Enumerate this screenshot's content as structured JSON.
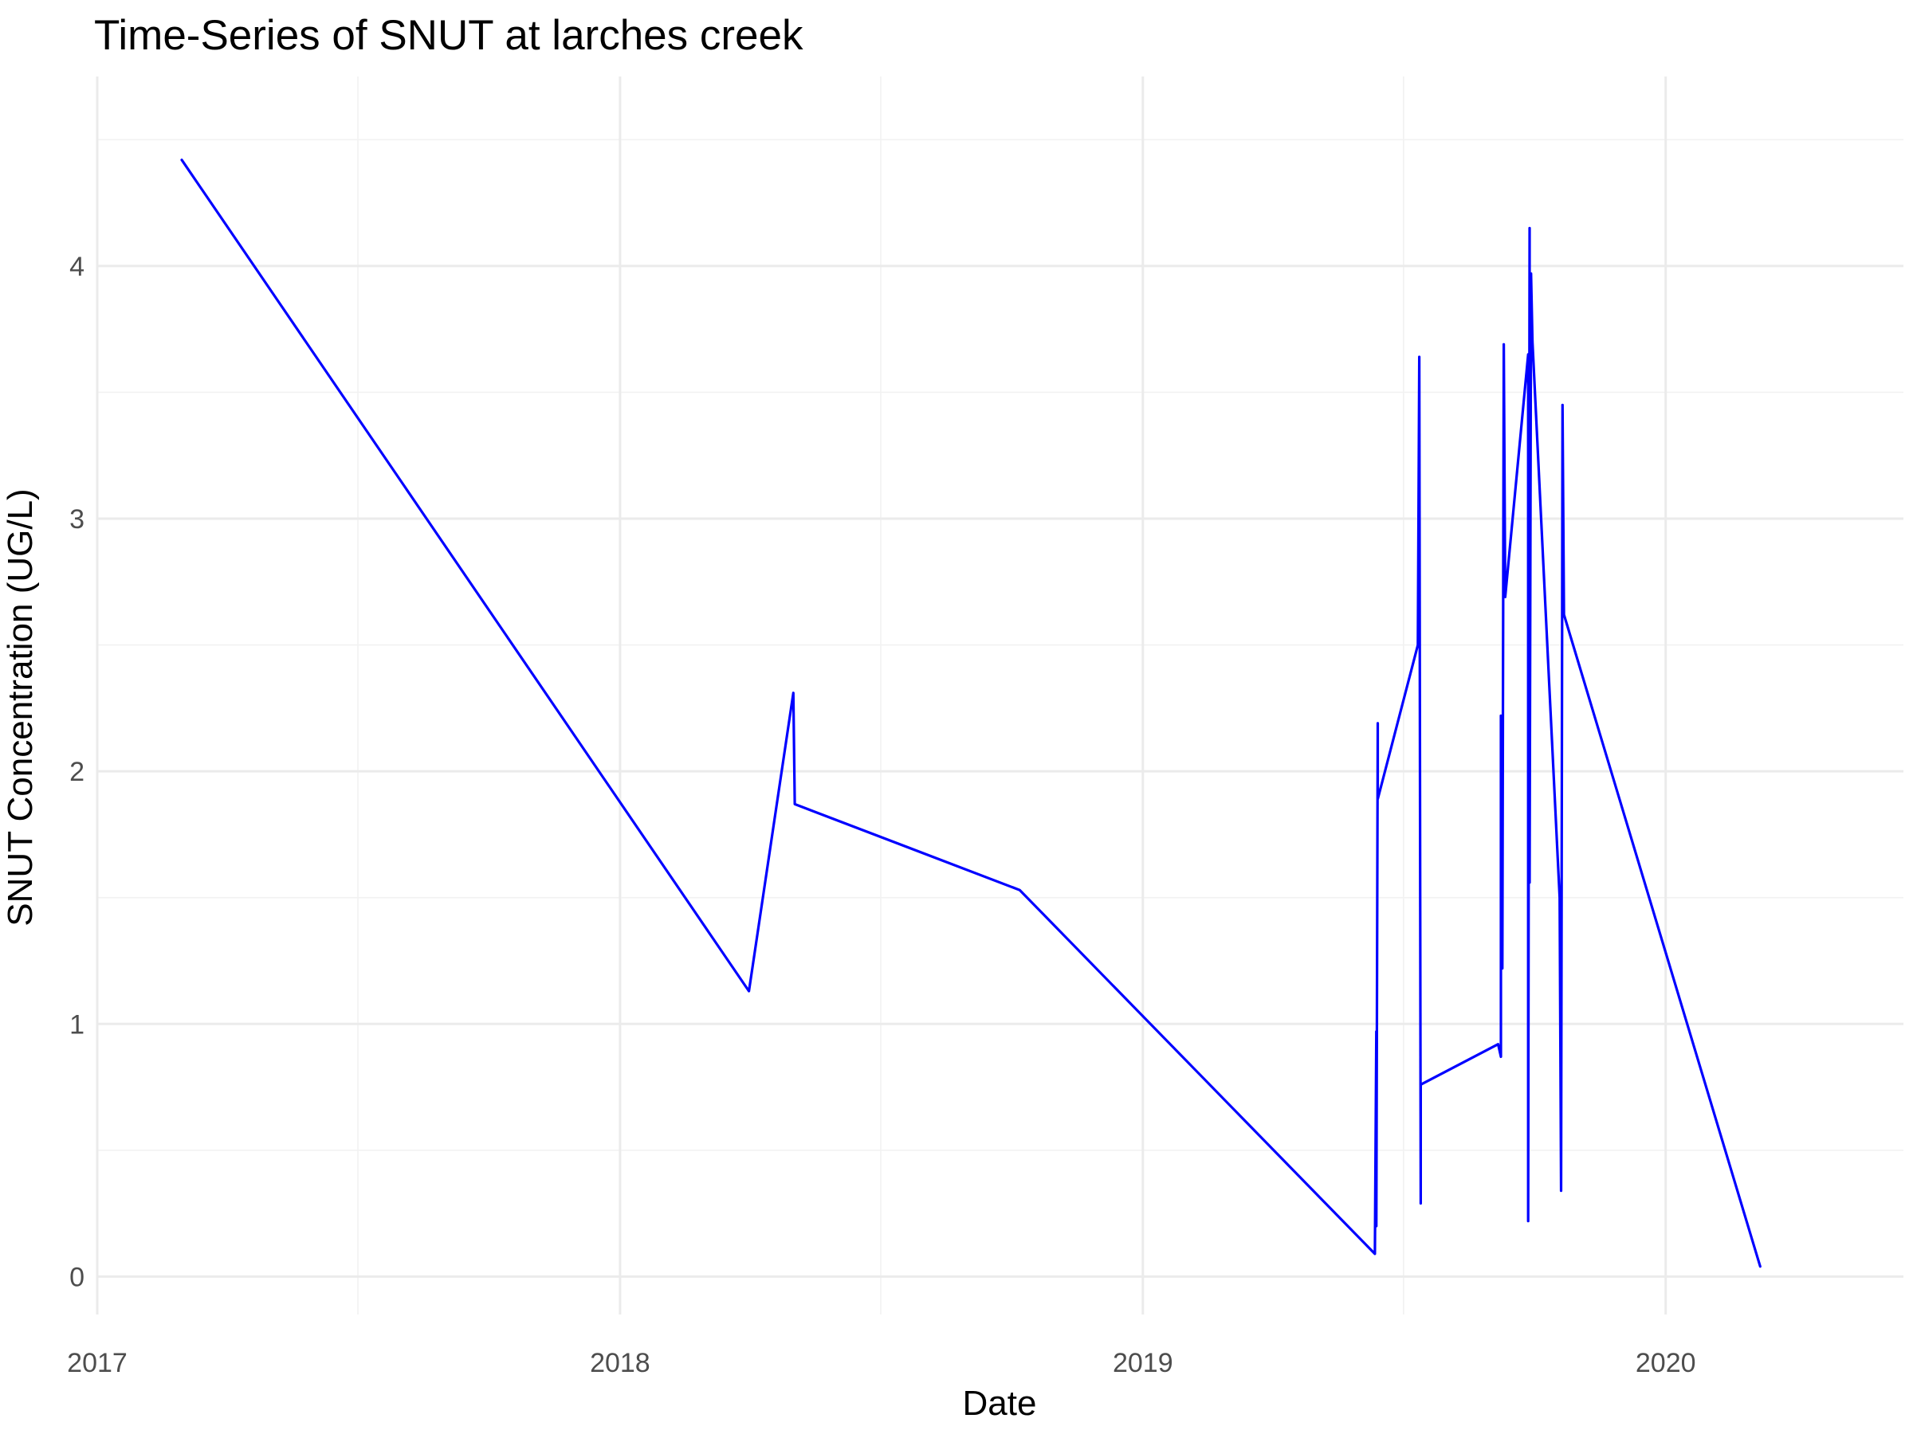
{
  "chart_data": {
    "type": "line",
    "title": "Time-Series of SNUT at larches creek",
    "xlabel": "Date",
    "ylabel": "SNUT Concentration (UG/L)",
    "x_ticks": [
      "2017",
      "2018",
      "2019",
      "2020"
    ],
    "y_ticks": [
      "0",
      "1",
      "2",
      "3",
      "4"
    ],
    "xlim": [
      "2017-01-01",
      "2020-06-15"
    ],
    "ylim": [
      -0.15,
      4.75
    ],
    "grid": true,
    "legend": "none",
    "colors": {
      "line": "#0000ff",
      "grid": "#ebebeb",
      "background": "#ffffff"
    },
    "series": [
      {
        "points": [
          [
            "2017-03-01",
            4.42
          ],
          [
            "2018-04-01",
            1.13
          ],
          [
            "2018-05-02",
            2.31
          ],
          [
            "2018-05-03",
            1.87
          ],
          [
            "2018-10-07",
            1.53
          ],
          [
            "2019-06-12",
            0.09
          ],
          [
            "2019-06-13",
            0.97
          ],
          [
            "2019-06-13",
            0.2
          ],
          [
            "2019-06-14",
            2.19
          ],
          [
            "2019-06-14",
            1.89
          ],
          [
            "2019-07-12",
            2.5
          ],
          [
            "2019-07-13",
            3.64
          ],
          [
            "2019-07-14",
            0.29
          ],
          [
            "2019-07-14",
            0.76
          ],
          [
            "2019-09-06",
            0.92
          ],
          [
            "2019-09-08",
            0.87
          ],
          [
            "2019-09-08",
            2.22
          ],
          [
            "2019-09-09",
            1.22
          ],
          [
            "2019-09-10",
            3.69
          ],
          [
            "2019-09-11",
            2.69
          ],
          [
            "2019-09-27",
            3.65
          ],
          [
            "2019-09-27",
            0.22
          ],
          [
            "2019-09-28",
            4.15
          ],
          [
            "2019-09-28",
            1.56
          ],
          [
            "2019-09-29",
            3.97
          ],
          [
            "2019-09-30",
            3.7
          ],
          [
            "2019-10-19",
            1.5
          ],
          [
            "2019-10-20",
            0.34
          ],
          [
            "2019-10-21",
            3.45
          ],
          [
            "2019-10-22",
            2.62
          ],
          [
            "2020-03-07",
            0.04
          ]
        ]
      }
    ]
  }
}
